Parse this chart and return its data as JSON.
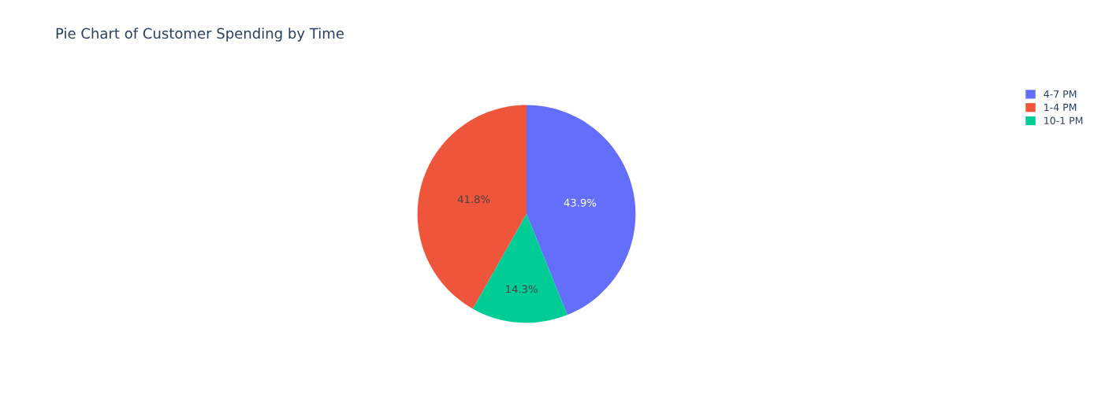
{
  "chart_data": {
    "type": "pie",
    "title": "Pie Chart of Customer Spending by Time",
    "categories": [
      "4-7 PM",
      "1-4 PM",
      "10-1 PM"
    ],
    "values": [
      43.9,
      41.8,
      14.3
    ],
    "colors": [
      "#636efa",
      "#ef553b",
      "#00cc96"
    ],
    "value_labels": [
      "43.9%",
      "41.8%",
      "14.3%"
    ],
    "legend": "top right"
  }
}
